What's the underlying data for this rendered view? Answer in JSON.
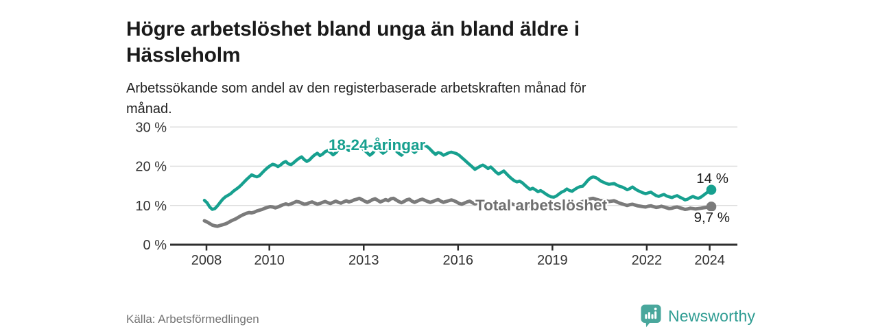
{
  "header": {
    "title": "Högre arbetslöshet bland unga än bland äldre i Hässleholm",
    "subtitle": "Arbetssökande som andel av den registerbaserade arbetskraften månad för månad."
  },
  "chart_data": {
    "type": "line",
    "title": "Högre arbetslöshet bland unga än bland äldre i Hässleholm",
    "subtitle": "Arbetssökande som andel av den registerbaserade arbetskraften månad för månad.",
    "unit": "%",
    "x_start_year": 2008,
    "x_start_month": 1,
    "x_end_year": 2024,
    "x_end_month": 2,
    "x_ticks": [
      2008,
      2010,
      2013,
      2016,
      2019,
      2022,
      2024
    ],
    "y_ticks": [
      0,
      10,
      20,
      30
    ],
    "y_tick_suffix": " %",
    "ylim": [
      0,
      30
    ],
    "grid": "horizontal",
    "legend_position": "inline-labels",
    "axis_color": "#2e2e2e",
    "grid_color": "#dcdcdc",
    "tick_label_color": "#333333",
    "annotation_color": "#1a1a1a",
    "series": [
      {
        "name": "18-24-åringar",
        "color": "#17a08f",
        "label_color": "#17a08f",
        "end_label": "14 %",
        "end_value": 14.0,
        "values": [
          11.3,
          10.7,
          9.6,
          9.0,
          9.2,
          9.9,
          10.8,
          11.6,
          12.2,
          12.6,
          13.0,
          13.6,
          14.1,
          14.6,
          15.2,
          15.9,
          16.6,
          17.2,
          17.8,
          17.5,
          17.3,
          17.6,
          18.3,
          19.0,
          19.6,
          20.1,
          20.5,
          20.3,
          19.9,
          20.3,
          20.9,
          21.2,
          20.6,
          20.4,
          20.9,
          21.5,
          22.0,
          22.4,
          21.7,
          21.2,
          21.6,
          22.3,
          22.9,
          23.3,
          22.7,
          23.1,
          23.7,
          24.0,
          23.5,
          22.9,
          23.4,
          24.2,
          24.9,
          25.3,
          24.6,
          24.0,
          24.5,
          25.0,
          25.4,
          25.1,
          24.6,
          24.0,
          23.4,
          22.8,
          23.3,
          24.1,
          24.6,
          23.9,
          23.3,
          23.8,
          24.3,
          24.7,
          24.4,
          23.9,
          23.3,
          22.8,
          23.4,
          24.2,
          24.8,
          24.1,
          23.5,
          24.0,
          24.6,
          25.0,
          25.3,
          24.9,
          24.3,
          23.6,
          23.0,
          23.5,
          23.3,
          22.8,
          23.1,
          23.4,
          23.6,
          23.4,
          23.2,
          22.8,
          22.2,
          21.6,
          21.0,
          20.4,
          19.8,
          19.2,
          19.6,
          20.0,
          20.3,
          19.9,
          19.4,
          19.8,
          19.2,
          18.5,
          18.0,
          18.4,
          18.8,
          18.1,
          17.4,
          16.8,
          16.3,
          16.0,
          16.2,
          15.8,
          15.2,
          14.6,
          14.1,
          14.4,
          14.0,
          13.5,
          13.8,
          13.4,
          12.9,
          12.5,
          12.2,
          12.1,
          12.4,
          12.9,
          13.4,
          13.7,
          14.2,
          13.8,
          13.6,
          14.1,
          14.5,
          14.8,
          14.9,
          15.6,
          16.4,
          17.0,
          17.3,
          17.1,
          16.7,
          16.2,
          15.9,
          15.6,
          15.4,
          15.5,
          15.6,
          15.2,
          14.9,
          14.7,
          14.4,
          14.0,
          14.3,
          14.7,
          14.2,
          13.8,
          13.5,
          13.2,
          13.0,
          13.2,
          13.4,
          12.9,
          12.5,
          12.3,
          12.6,
          12.8,
          12.4,
          12.2,
          12.0,
          12.3,
          12.5,
          12.1,
          11.8,
          11.4,
          11.6,
          12.0,
          12.3,
          12.0,
          11.8,
          12.1,
          12.6,
          13.1,
          13.6,
          14.0
        ]
      },
      {
        "name": "Total arbetslöshet",
        "color": "#7b7b7b",
        "label_color": "#6f6f6f",
        "end_label": "9,7 %",
        "end_value": 9.7,
        "values": [
          6.1,
          5.8,
          5.4,
          5.0,
          4.8,
          4.7,
          4.9,
          5.1,
          5.3,
          5.6,
          6.0,
          6.3,
          6.6,
          7.0,
          7.4,
          7.7,
          8.0,
          8.2,
          8.1,
          8.3,
          8.6,
          8.8,
          9.0,
          9.3,
          9.5,
          9.7,
          9.6,
          9.4,
          9.6,
          9.9,
          10.2,
          10.4,
          10.2,
          10.4,
          10.7,
          11.0,
          10.9,
          10.6,
          10.3,
          10.4,
          10.7,
          10.9,
          10.6,
          10.3,
          10.5,
          10.8,
          11.0,
          10.7,
          10.5,
          10.8,
          11.1,
          10.8,
          10.6,
          10.9,
          11.2,
          10.9,
          11.1,
          11.4,
          11.6,
          11.8,
          11.5,
          11.1,
          10.8,
          11.1,
          11.5,
          11.7,
          11.3,
          10.9,
          11.2,
          11.5,
          11.2,
          11.7,
          11.8,
          11.4,
          11.0,
          10.7,
          11.0,
          11.4,
          11.6,
          11.1,
          10.8,
          11.1,
          11.4,
          11.6,
          11.3,
          11.0,
          10.8,
          11.0,
          11.3,
          11.5,
          11.1,
          10.8,
          11.0,
          11.2,
          11.4,
          11.2,
          10.9,
          10.5,
          10.3,
          10.6,
          10.9,
          11.1,
          10.7,
          10.4,
          10.6,
          10.8,
          10.6,
          10.3,
          10.5,
          10.7,
          10.4,
          10.1,
          10.3,
          10.6,
          10.3,
          10.0,
          10.2,
          10.4,
          10.2,
          10.0,
          10.2,
          10.4,
          10.1,
          9.8,
          9.9,
          10.1,
          9.9,
          9.7,
          9.9,
          10.1,
          9.9,
          10.1,
          10.3,
          10.1,
          9.9,
          10.0,
          10.2,
          10.4,
          10.2,
          10.0,
          10.2,
          10.4,
          10.6,
          10.8,
          11.0,
          11.2,
          11.5,
          11.7,
          11.8,
          11.6,
          11.4,
          11.2,
          11.3,
          11.2,
          11.0,
          11.1,
          11.2,
          10.9,
          10.6,
          10.4,
          10.2,
          10.0,
          10.2,
          10.3,
          10.1,
          9.9,
          9.8,
          9.7,
          9.6,
          9.8,
          9.9,
          9.7,
          9.5,
          9.6,
          9.8,
          9.6,
          9.4,
          9.2,
          9.3,
          9.5,
          9.6,
          9.4,
          9.2,
          9.0,
          9.1,
          9.3,
          9.2,
          9.1,
          9.2,
          9.3,
          9.4,
          9.5,
          9.6,
          9.7
        ]
      }
    ]
  },
  "footer": {
    "source": "Källa: Arbetsförmedlingen",
    "brand": "Newsworthy",
    "brand_color": "#2e9c92",
    "brand_icon_color": "#49a79c"
  }
}
